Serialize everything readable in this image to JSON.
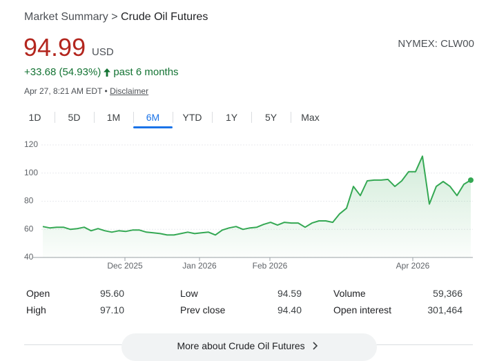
{
  "breadcrumb": {
    "parent": "Market Summary",
    "separator": ">",
    "current": "Crude Oil Futures"
  },
  "price": {
    "value": "94.99",
    "currency": "USD"
  },
  "exchange": "NYMEX: CLW00",
  "change": {
    "amount": "+33.68 (54.93%)",
    "period": "past 6 months"
  },
  "timestamp": "Apr 27, 8:21 AM EDT",
  "bullet": "•",
  "disclaimer": "Disclaimer",
  "ranges": [
    "1D",
    "5D",
    "1M",
    "6M",
    "YTD",
    "1Y",
    "5Y",
    "Max"
  ],
  "selected_range": 3,
  "chart_data": {
    "type": "line",
    "color": "#34a853",
    "grid": true,
    "values": [
      62,
      61,
      61.5,
      61.5,
      60,
      60.5,
      61.5,
      59,
      60.5,
      59,
      58,
      59,
      58.5,
      59.5,
      59.5,
      58,
      57.5,
      57,
      56,
      56,
      57,
      58,
      57,
      57.5,
      58,
      56,
      59.5,
      61,
      62,
      60,
      61,
      61.5,
      63.5,
      65,
      63,
      65,
      64.5,
      64.5,
      61.5,
      64.5,
      66,
      66,
      65,
      71,
      75,
      90.5,
      84,
      94.5,
      95,
      95,
      95.5,
      90.5,
      94.5,
      101,
      101,
      112,
      78,
      90.5,
      94,
      90.5,
      84,
      92,
      95
    ],
    "xlim": [
      -1.2,
      62.1
    ],
    "xticks": [
      {
        "value": 11.9,
        "label": "Dec 2025"
      },
      {
        "value": 22.7,
        "label": "Jan 2026"
      },
      {
        "value": 32.9,
        "label": "Feb 2026"
      },
      {
        "value": 53.6,
        "label": "Apr 2026"
      }
    ],
    "ylim": [
      40,
      120
    ],
    "yticks": [
      40,
      60,
      80,
      100,
      120
    ]
  },
  "stats": [
    [
      [
        "Open",
        "95.60"
      ],
      [
        "High",
        "97.10"
      ]
    ],
    [
      [
        "Low",
        "94.59"
      ],
      [
        "Prev close",
        "94.40"
      ]
    ],
    [
      [
        "Volume",
        "59,366"
      ],
      [
        "Open interest",
        "301,464"
      ]
    ]
  ],
  "more_button": "More about Crude Oil Futures"
}
